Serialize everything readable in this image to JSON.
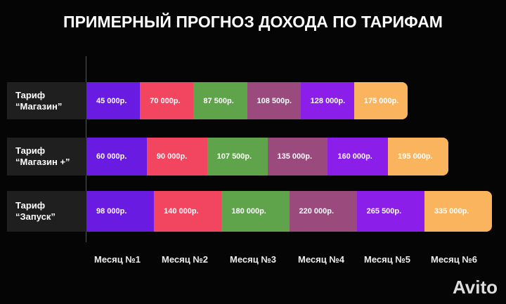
{
  "header": {
    "title": "ПРИМЕРНЫЙ ПРОГНОЗ ДОХОДА ПО ТАРИФАМ"
  },
  "rows": [
    {
      "label": "Тариф\n“Магазин”",
      "cells": [
        "45 000р.",
        "70 000р.",
        "87 500р.",
        "108 500р.",
        "128 000р.",
        "175 000р."
      ]
    },
    {
      "label": "Тариф\n“Магазин +”",
      "cells": [
        "60 000р.",
        "90 000р.",
        "107 500р.",
        "135 000р.",
        "160 000р.",
        "195 000р."
      ]
    },
    {
      "label": "Тариф\n“Запуск”",
      "cells": [
        "98 000р.",
        "140 000р.",
        "180 000р.",
        "220 000р.",
        "265 500р.",
        "335 000р."
      ]
    }
  ],
  "months": [
    "Месяц №1",
    "Месяц №2",
    "Месяц №3",
    "Месяц №4",
    "Месяц №5",
    "Месяц №6"
  ],
  "watermark": "Avito"
}
